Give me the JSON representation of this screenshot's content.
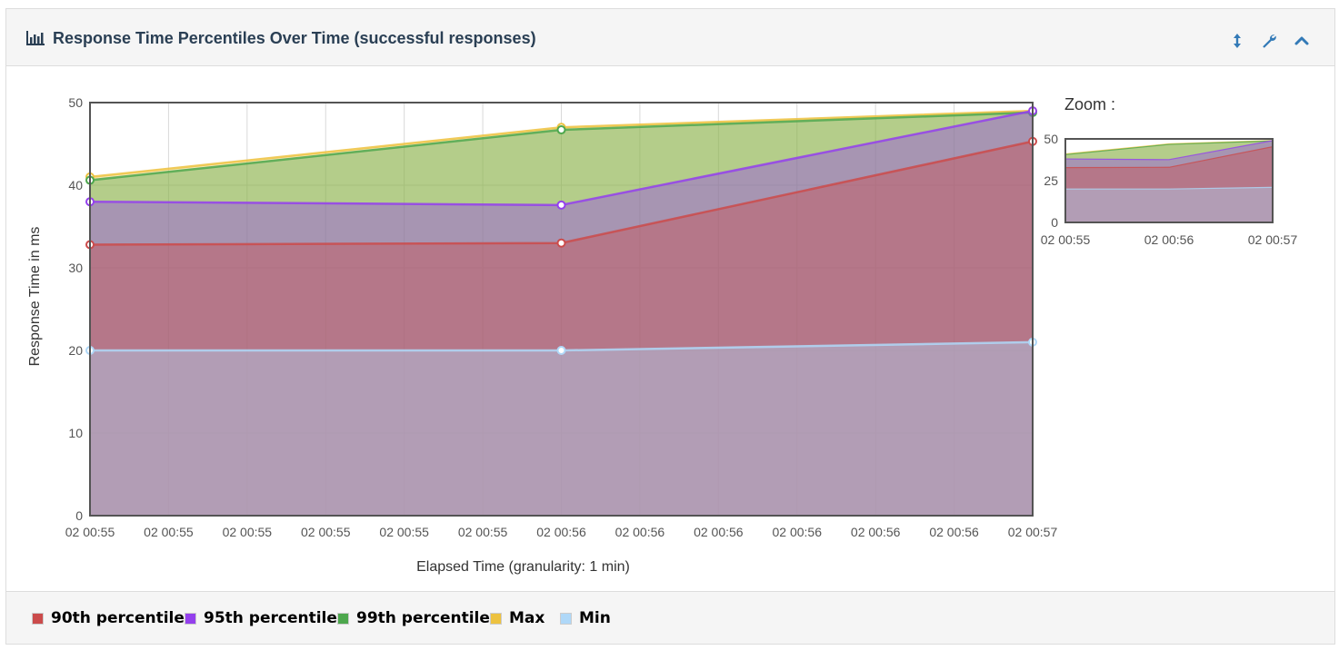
{
  "panel": {
    "title": "Response Time Percentiles Over Time (successful responses)",
    "title_icon": "bar-chart-icon",
    "tools": [
      "resize-vertical-icon",
      "wrench-icon",
      "chevron-up-icon"
    ]
  },
  "zoom": {
    "label": "Zoom :",
    "ylim": [
      0,
      50
    ],
    "y_ticks": [
      "0",
      "25",
      "50"
    ],
    "x_ticks": [
      "02 00:55",
      "02 00:56",
      "02 00:57"
    ]
  },
  "legend": [
    {
      "label": "90th percentile",
      "color": "#cb4b4b"
    },
    {
      "label": "95th percentile",
      "color": "#9440ed"
    },
    {
      "label": "99th percentile",
      "color": "#4da74d"
    },
    {
      "label": "Max",
      "color": "#edc240"
    },
    {
      "label": "Min",
      "color": "#afd8f8"
    }
  ],
  "chart_data": {
    "type": "area",
    "title": "",
    "xlabel": "Elapsed Time (granularity: 1 min)",
    "ylabel": "Response Time in ms",
    "ylim": [
      0,
      50
    ],
    "y_ticks": [
      "0",
      "10",
      "20",
      "30",
      "40",
      "50"
    ],
    "x_tick_labels": [
      "02 00:55",
      "02 00:55",
      "02 00:55",
      "02 00:55",
      "02 00:55",
      "02 00:55",
      "02 00:56",
      "02 00:56",
      "02 00:56",
      "02 00:56",
      "02 00:56",
      "02 00:56",
      "02 00:57"
    ],
    "x": [
      "02 00:55",
      "02 00:56",
      "02 00:57"
    ],
    "grid": true,
    "legend_position": "bottom",
    "series": [
      {
        "name": "Max",
        "color": "#edc240",
        "values": [
          41,
          47,
          49
        ]
      },
      {
        "name": "99th percentile",
        "color": "#4da74d",
        "values": [
          40.6,
          46.7,
          48.8
        ]
      },
      {
        "name": "95th percentile",
        "color": "#9440ed",
        "values": [
          38,
          37.6,
          49
        ]
      },
      {
        "name": "90th percentile",
        "color": "#cb4b4b",
        "values": [
          32.8,
          33,
          45.3
        ]
      },
      {
        "name": "Min",
        "color": "#afd8f8",
        "values": [
          20,
          20,
          21
        ]
      }
    ]
  }
}
